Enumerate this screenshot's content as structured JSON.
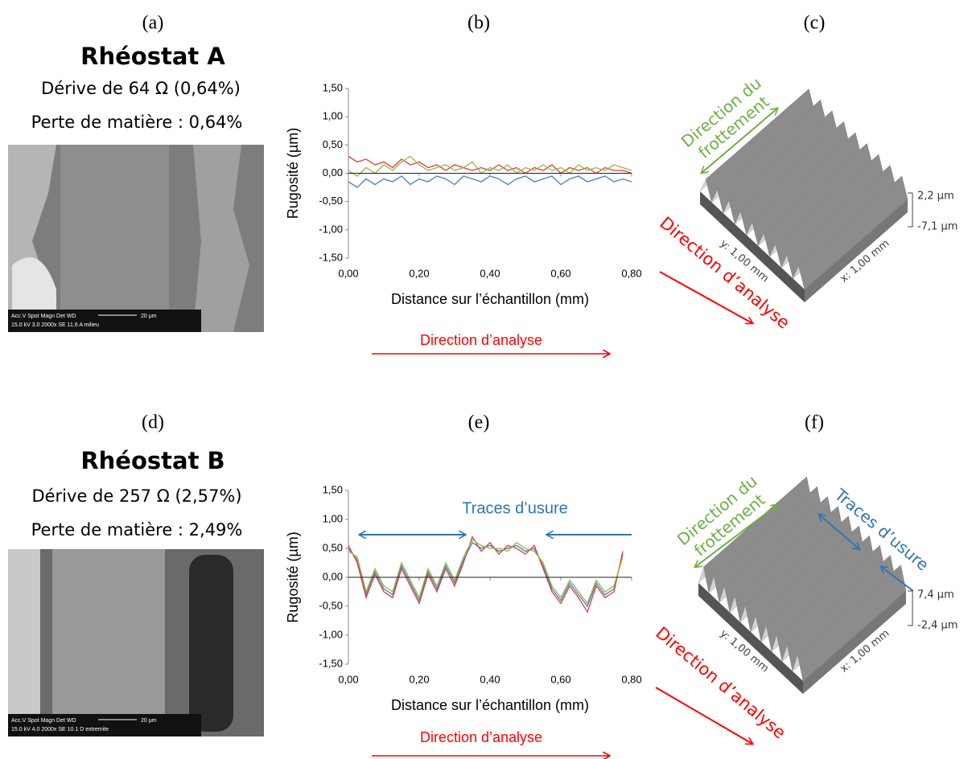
{
  "left_panels": [
    {
      "label": "(a)",
      "title": "Rhéostat A",
      "drift": "Dérive de 64 Ω (0,64%)",
      "loss": "Perte de matière : 0,64%",
      "sem_line_1": "Acc.V  Spot Magn    Det  WD",
      "sem_line_2": "15.0 kV 3.0  2000x    SE  11.6  A milieu",
      "sem_scale": "20 µm"
    },
    {
      "label": "(d)",
      "title": "Rhéostat B",
      "drift": "Dérive de 257 Ω (2,57%)",
      "loss": "Perte de matière : 2,49%",
      "sem_line_1": "Acc.V  Spot Magn    Det  WD",
      "sem_line_2": "15.0 kV 4.0  2000x    SE  10.1  D extremite",
      "sem_scale": "20 µm"
    }
  ],
  "chart_data": [
    {
      "type": "line",
      "label": "(b)",
      "y_label": "Rugosité (µm)",
      "x_label": "Distance sur l’échantillon (mm)",
      "direction_label": "Direction  d’analyse",
      "xlim": [
        0,
        0.8
      ],
      "ylim": [
        -1.5,
        1.5
      ],
      "xticks": [
        {
          "value": 0,
          "label": "0,00"
        },
        {
          "value": 0.2,
          "label": "0,20"
        },
        {
          "value": 0.4,
          "label": "0,40"
        },
        {
          "value": 0.6,
          "label": "0,60"
        },
        {
          "value": 0.8,
          "label": "0,80"
        }
      ],
      "yticks": [
        {
          "value": 1.5,
          "label": "1,50"
        },
        {
          "value": 1,
          "label": "1,00"
        },
        {
          "value": 0.5,
          "label": "0,50"
        },
        {
          "value": 0,
          "label": "0,00"
        },
        {
          "value": -0.5,
          "label": "-0,50"
        },
        {
          "value": -1,
          "label": "-1,00"
        },
        {
          "value": -1.5,
          "label": "-1,50"
        }
      ],
      "x": [
        0,
        0.025,
        0.05,
        0.075,
        0.1,
        0.125,
        0.15,
        0.175,
        0.2,
        0.225,
        0.25,
        0.275,
        0.3,
        0.325,
        0.35,
        0.375,
        0.4,
        0.425,
        0.45,
        0.475,
        0.5,
        0.525,
        0.55,
        0.575,
        0.6,
        0.625,
        0.65,
        0.675,
        0.7,
        0.725,
        0.75,
        0.775,
        0.8
      ],
      "series": [
        {
          "color": "#4a7fc1",
          "values": [
            -0.15,
            -0.25,
            -0.1,
            -0.2,
            -0.1,
            -0.15,
            -0.05,
            -0.2,
            -0.1,
            -0.15,
            -0.05,
            -0.1,
            -0.2,
            -0.05,
            -0.1,
            -0.15,
            -0.05,
            -0.1,
            -0.2,
            -0.1,
            -0.05,
            -0.15,
            -0.1,
            -0.05,
            -0.2,
            -0.1,
            -0.05,
            -0.15,
            -0.1,
            -0.05,
            -0.15,
            -0.1,
            -0.15
          ]
        },
        {
          "color": "#e03c3c",
          "values": [
            0.3,
            0.2,
            0.25,
            0.15,
            0.2,
            0.1,
            0.25,
            0.15,
            0.2,
            0.1,
            0.15,
            0.05,
            0.15,
            0.1,
            0.05,
            0.1,
            0.05,
            0.15,
            0.05,
            0.1,
            0,
            0.1,
            0.05,
            0.15,
            0,
            0.1,
            0.05,
            0.1,
            0,
            0.1,
            0.05,
            0.05,
            0
          ]
        },
        {
          "color": "#8fbc45",
          "values": [
            0.05,
            -0.05,
            0.1,
            0,
            0.15,
            0.05,
            0.2,
            0.3,
            0.15,
            0.05,
            0.1,
            0.15,
            0.05,
            0.1,
            0.2,
            0,
            0.1,
            0.05,
            0.15,
            0,
            0.1,
            0.05,
            0.15,
            0.05,
            0.1,
            0,
            0.15,
            0.05,
            0.1,
            0.05,
            0.15,
            0.1,
            0.05
          ]
        }
      ]
    },
    {
      "type": "line",
      "label": "(e)",
      "y_label": "Rugosité (µm)",
      "x_label": "Distance sur l’échantillon (mm)",
      "direction_label": "Direction  d’analyse",
      "annotation": "Traces d’usure",
      "xlim": [
        0,
        0.8
      ],
      "ylim": [
        -1.5,
        1.5
      ],
      "xticks": [
        {
          "value": 0,
          "label": "0,00"
        },
        {
          "value": 0.2,
          "label": "0,20"
        },
        {
          "value": 0.4,
          "label": "0,40"
        },
        {
          "value": 0.6,
          "label": "0,60"
        },
        {
          "value": 0.8,
          "label": "0,80"
        }
      ],
      "yticks": [
        {
          "value": 1.5,
          "label": "1,50"
        },
        {
          "value": 1,
          "label": "1,00"
        },
        {
          "value": 0.5,
          "label": "0,50"
        },
        {
          "value": 0,
          "label": "0,00"
        },
        {
          "value": -0.5,
          "label": "-0,50"
        },
        {
          "value": -1,
          "label": "-1,00"
        },
        {
          "value": -1.5,
          "label": "-1,50"
        }
      ],
      "x": [
        0,
        0.025,
        0.05,
        0.075,
        0.1,
        0.125,
        0.15,
        0.175,
        0.2,
        0.225,
        0.25,
        0.275,
        0.3,
        0.325,
        0.35,
        0.375,
        0.4,
        0.425,
        0.45,
        0.475,
        0.5,
        0.525,
        0.55,
        0.575,
        0.6,
        0.625,
        0.65,
        0.675,
        0.7,
        0.725,
        0.75,
        0.775
      ],
      "series": [
        {
          "color": "#4a7fc1",
          "values": [
            0.5,
            0.3,
            -0.3,
            0.1,
            -0.2,
            -0.3,
            0.2,
            -0.1,
            -0.4,
            0.1,
            -0.2,
            0.2,
            -0.1,
            0.3,
            0.6,
            0.5,
            0.55,
            0.45,
            0.5,
            0.55,
            0.45,
            0.5,
            0.2,
            -0.2,
            -0.4,
            -0.1,
            -0.3,
            -0.5,
            -0.1,
            -0.3,
            -0.2,
            0.4
          ]
        },
        {
          "color": "#e03c3c",
          "values": [
            0.55,
            0.25,
            -0.35,
            0.05,
            -0.25,
            -0.35,
            0.15,
            -0.15,
            -0.45,
            0.05,
            -0.25,
            0.15,
            -0.15,
            0.25,
            0.7,
            0.45,
            0.6,
            0.4,
            0.55,
            0.5,
            0.4,
            0.55,
            0.15,
            -0.25,
            -0.45,
            -0.15,
            -0.35,
            -0.6,
            -0.15,
            -0.35,
            -0.25,
            0.45
          ]
        },
        {
          "color": "#8fbc45",
          "values": [
            0.45,
            0.35,
            -0.25,
            0.15,
            -0.15,
            -0.25,
            0.25,
            -0.05,
            -0.35,
            0.15,
            -0.15,
            0.25,
            -0.05,
            0.35,
            0.65,
            0.55,
            0.5,
            0.5,
            0.45,
            0.6,
            0.5,
            0.45,
            0.25,
            -0.15,
            -0.35,
            -0.05,
            -0.25,
            -0.45,
            -0.05,
            -0.25,
            -0.15,
            0.35
          ]
        }
      ]
    }
  ],
  "surface_panels": [
    {
      "label": "(c)",
      "friction": [
        "Direction du",
        "frottement"
      ],
      "analysis": "Direction d’analyse",
      "z_max": "2,2 µm",
      "z_min": "-7,1 µm",
      "y_axis": "y: 1,00 mm",
      "x_axis": "x: 1,00 mm"
    },
    {
      "label": "(f)",
      "friction": [
        "Direction du",
        "frottement"
      ],
      "analysis": "Direction d’analyse",
      "z_max": "7,4 µm",
      "z_min": "-2,4 µm",
      "y_axis": "y: 1,00 mm",
      "x_axis": "x: 1,00 mm",
      "wear": "Traces d’usure"
    }
  ]
}
